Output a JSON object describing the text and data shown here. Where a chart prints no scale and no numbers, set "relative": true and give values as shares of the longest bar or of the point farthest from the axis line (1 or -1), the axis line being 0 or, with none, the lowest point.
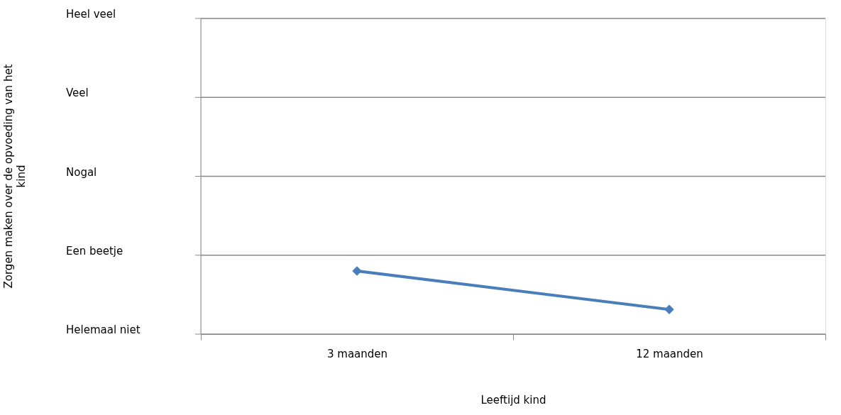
{
  "chart_data": {
    "type": "line",
    "xlabel": "Leeftijd kind",
    "categories": [
      "3 maanden",
      "12 maanden"
    ],
    "relative": true,
    "series": [
      {
        "color": "#4a7ebb",
        "values": [
          1,
          0.39
        ]
      }
    ],
    "annotations": [
      "Heel veel",
      "Veel",
      "Nogal",
      "Een beetje",
      "Helemaal niet",
      "Zorgen maken over de opvoeding van  het kind"
    ],
    "marker": "diamond",
    "line_style": "solid",
    "legend": false
  }
}
